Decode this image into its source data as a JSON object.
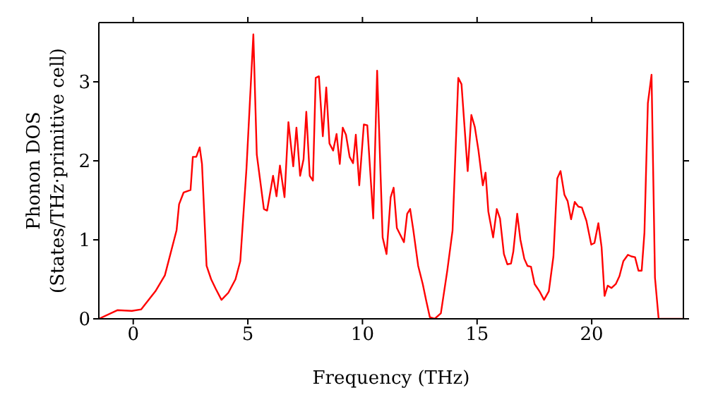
{
  "chart_data": {
    "type": "line",
    "xlabel": "Frequency (THz)",
    "ylabel": "Phonon DOS\n(States/THz·primitive cell)",
    "x": [
      -1.5,
      -0.68,
      -0.06,
      0.35,
      0.97,
      1.38,
      1.89,
      2,
      2.2,
      2.5,
      2.6,
      2.75,
      2.9,
      3.0,
      3.2,
      3.4,
      3.6,
      3.85,
      4.15,
      4.46,
      4.67,
      4.94,
      5.24,
      5.39,
      5.7,
      5.84,
      6.1,
      6.25,
      6.4,
      6.6,
      6.77,
      6.98,
      7.12,
      7.28,
      7.43,
      7.55,
      7.7,
      7.84,
      7.96,
      8.1,
      8.27,
      8.42,
      8.56,
      8.72,
      8.87,
      9.01,
      9.14,
      9.28,
      9.44,
      9.59,
      9.71,
      9.86,
      10.06,
      10.21,
      10.47,
      10.64,
      10.88,
      11.05,
      11.23,
      11.36,
      11.5,
      11.81,
      11.95,
      12.08,
      12.22,
      12.43,
      12.63,
      12.78,
      12.94,
      13.15,
      13.42,
      13.7,
      13.93,
      14.18,
      14.32,
      14.59,
      14.75,
      14.9,
      15.06,
      15.25,
      15.37,
      15.49,
      15.7,
      15.86,
      16.0,
      16.17,
      16.32,
      16.48,
      16.58,
      16.75,
      16.89,
      17.06,
      17.2,
      17.35,
      17.51,
      17.72,
      17.92,
      18.13,
      18.33,
      18.5,
      18.64,
      18.81,
      18.95,
      19.1,
      19.26,
      19.42,
      19.57,
      19.77,
      19.98,
      20.12,
      20.29,
      20.43,
      20.56,
      20.7,
      20.86,
      21.05,
      21.21,
      21.38,
      21.58,
      21.73,
      21.89,
      22.04,
      22.18,
      22.3,
      22.45,
      22.61,
      22.76,
      22.92,
      24
    ],
    "series": [
      {
        "color": "#ff0000",
        "values": [
          0,
          0.11,
          0.1,
          0.12,
          0.35,
          0.55,
          1.12,
          1.45,
          1.6,
          1.63,
          2.05,
          2.05,
          2.17,
          1.96,
          0.67,
          0.5,
          0.38,
          0.24,
          0.33,
          0.5,
          0.73,
          1.9,
          3.6,
          2.08,
          1.39,
          1.37,
          1.81,
          1.55,
          1.94,
          1.54,
          2.49,
          1.93,
          2.42,
          1.81,
          2.02,
          2.62,
          1.81,
          1.75,
          3.05,
          3.07,
          2.31,
          2.93,
          2.22,
          2.13,
          2.34,
          1.96,
          2.42,
          2.33,
          2.05,
          1.97,
          2.33,
          1.69,
          2.46,
          2.45,
          1.27,
          3.14,
          1.03,
          0.82,
          1.54,
          1.66,
          1.15,
          0.97,
          1.33,
          1.39,
          1.12,
          0.67,
          0.44,
          0.23,
          0.02,
          0,
          0.07,
          0.61,
          1.12,
          3.05,
          2.97,
          1.87,
          2.58,
          2.43,
          2.13,
          1.69,
          1.85,
          1.36,
          1.03,
          1.39,
          1.27,
          0.82,
          0.69,
          0.7,
          0.85,
          1.33,
          1.0,
          0.76,
          0.67,
          0.66,
          0.44,
          0.35,
          0.24,
          0.35,
          0.79,
          1.78,
          1.87,
          1.57,
          1.49,
          1.26,
          1.48,
          1.42,
          1.41,
          1.24,
          0.94,
          0.96,
          1.21,
          0.91,
          0.29,
          0.42,
          0.39,
          0.44,
          0.54,
          0.73,
          0.81,
          0.79,
          0.78,
          0.61,
          0.61,
          1.09,
          2.73,
          3.09,
          0.52,
          0,
          0
        ]
      }
    ],
    "xlim": [
      -1.5,
      24
    ],
    "ylim": [
      0,
      3.75
    ],
    "xticks": [
      0,
      5,
      10,
      15,
      20
    ],
    "yticks": [
      0,
      1,
      2,
      3
    ],
    "grid": false,
    "legend": false,
    "marker": "none",
    "line_style": "solid"
  }
}
